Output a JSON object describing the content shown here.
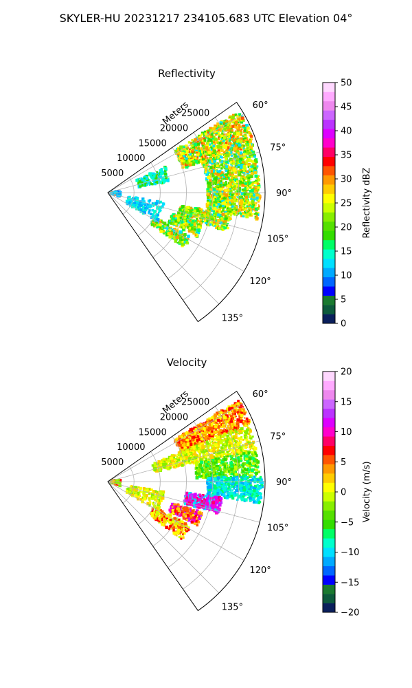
{
  "figure_title": "SKYLER-HU  20231217  234105.683 UTC Elevation 04°",
  "chart_data": [
    {
      "type": "heatmap",
      "projection": "polar-sector",
      "title": "Reflectivity",
      "radial_label": "Meters",
      "radial_ticks": [
        "5000",
        "10000",
        "15000",
        "20000",
        "25000"
      ],
      "radial_values": [
        5000,
        10000,
        15000,
        20000,
        25000
      ],
      "rlim": [
        0,
        30000
      ],
      "angle_ticks": [
        "60°",
        "75°",
        "90°",
        "105°",
        "120°",
        "135°"
      ],
      "angle_values": [
        60,
        75,
        90,
        105,
        120,
        135
      ],
      "azimuth_range_deg": [
        55,
        145
      ],
      "grid": true,
      "colorbar": {
        "label": "Reflectivity dBZ",
        "range": [
          0,
          50
        ],
        "ticks": [
          "0",
          "5",
          "10",
          "15",
          "20",
          "25",
          "30",
          "35",
          "40",
          "45",
          "50"
        ],
        "tick_values": [
          0,
          5,
          10,
          15,
          20,
          25,
          30,
          35,
          40,
          45,
          50
        ],
        "colors": [
          "#0a1f5c",
          "#0d5a3c",
          "#1a7a30",
          "#0000ff",
          "#0066ff",
          "#00aaff",
          "#00e0ff",
          "#00ffcc",
          "#00ff66",
          "#33dd00",
          "#55e000",
          "#88ee00",
          "#ccff00",
          "#ffff00",
          "#ffcc00",
          "#ff9900",
          "#ff5500",
          "#ff0000",
          "#ff0066",
          "#ff00cc",
          "#dd00ff",
          "#bb33ff",
          "#cc66ff",
          "#ee88ee",
          "#ffaaff",
          "#ffd8ff"
        ]
      }
    },
    {
      "type": "heatmap",
      "projection": "polar-sector",
      "title": "Velocity",
      "radial_label": "Meters",
      "radial_ticks": [
        "5000",
        "10000",
        "15000",
        "20000",
        "25000"
      ],
      "radial_values": [
        5000,
        10000,
        15000,
        20000,
        25000
      ],
      "rlim": [
        0,
        30000
      ],
      "angle_ticks": [
        "60°",
        "75°",
        "90°",
        "105°",
        "120°",
        "135°"
      ],
      "angle_values": [
        60,
        75,
        90,
        105,
        120,
        135
      ],
      "azimuth_range_deg": [
        55,
        145
      ],
      "grid": true,
      "colorbar": {
        "label": "Velocity (m/s)",
        "range": [
          -20,
          20
        ],
        "ticks": [
          "−20",
          "−15",
          "−10",
          "−5",
          "0",
          "5",
          "10",
          "15",
          "20"
        ],
        "tick_values": [
          -20,
          -15,
          -10,
          -5,
          0,
          5,
          10,
          15,
          20
        ],
        "colors": [
          "#0a1f5c",
          "#0d5a3c",
          "#1a7a30",
          "#0000ff",
          "#0066ff",
          "#00aaff",
          "#00e0ff",
          "#00ffcc",
          "#00ff66",
          "#33dd00",
          "#55e000",
          "#88ee00",
          "#ccff00",
          "#ffff00",
          "#ffcc00",
          "#ff9900",
          "#ff5500",
          "#ff0000",
          "#ff0066",
          "#ff00cc",
          "#dd00ff",
          "#bb33ff",
          "#cc66ff",
          "#ee88ee",
          "#ffaaff",
          "#ffd8ff"
        ]
      }
    }
  ]
}
